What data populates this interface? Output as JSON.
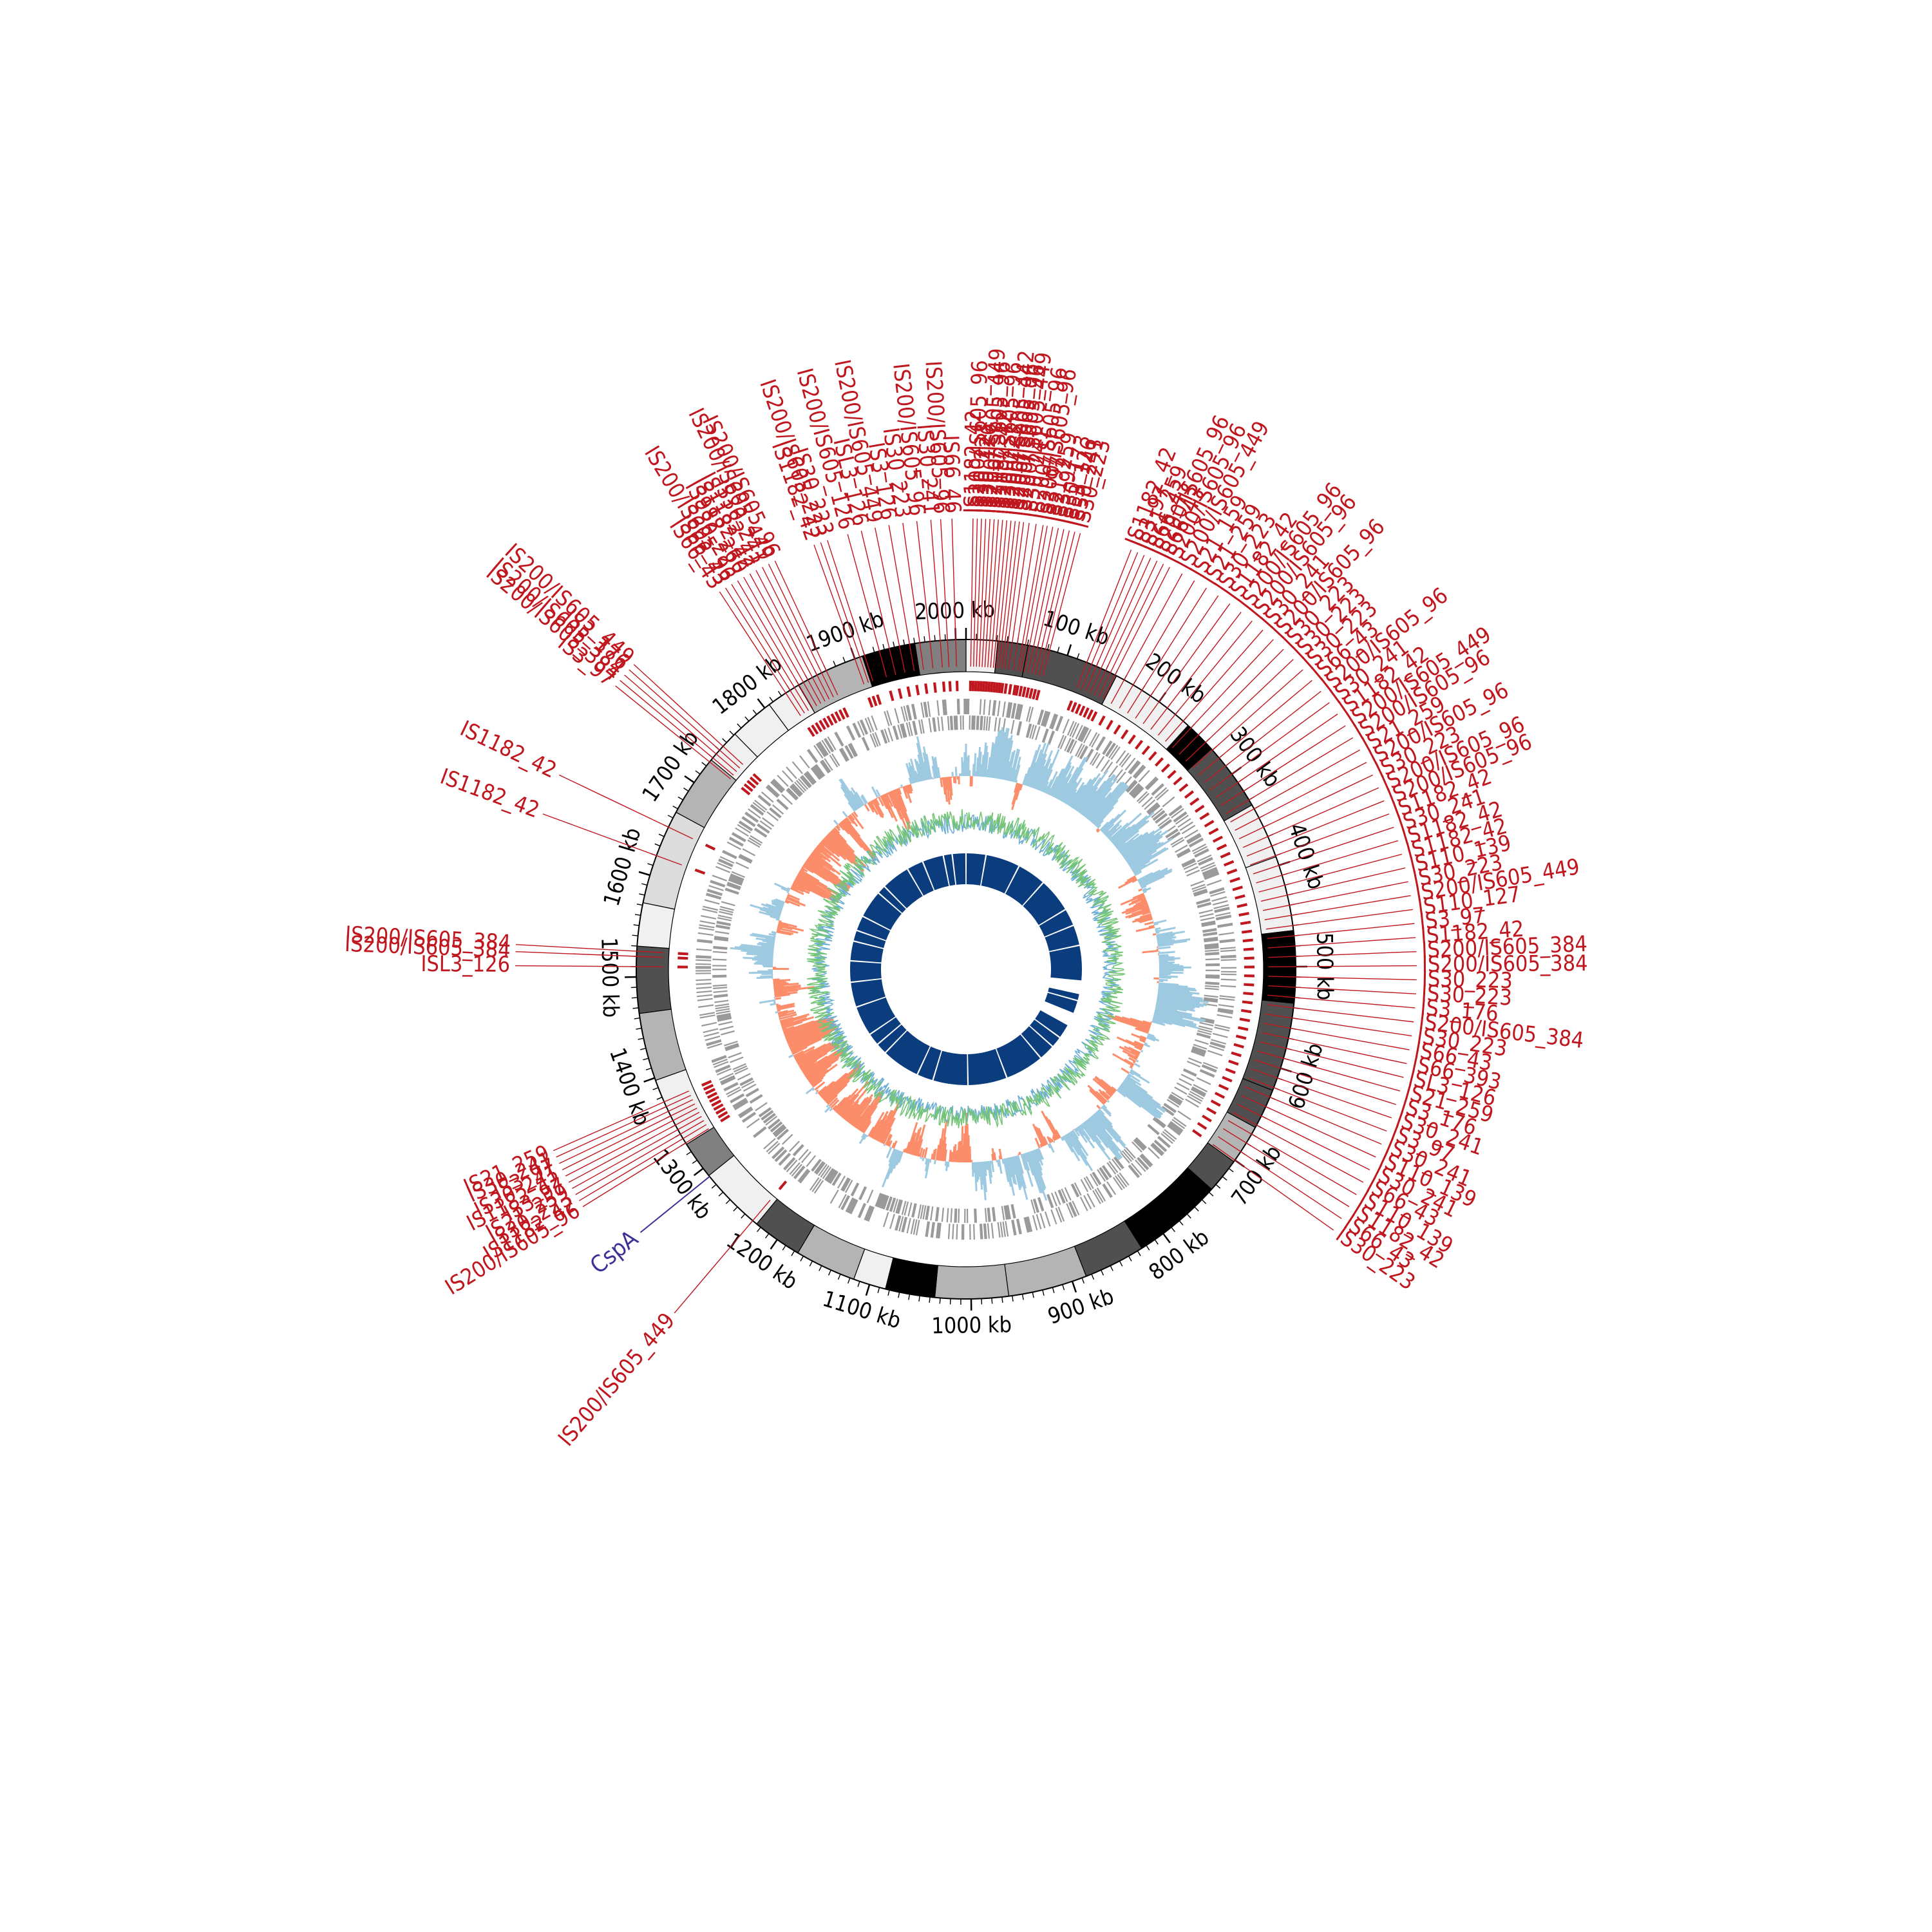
{
  "genome": {
    "length_kb": 2010,
    "origin_label": "2000 kb"
  },
  "colors": {
    "is_element": "#c0171f",
    "gene_marker": "#3c3296",
    "gc_skew_positive": "#9ecae1",
    "gc_skew_negative": "#fc8d6a",
    "gc_content_a": "#74c476",
    "gc_content_b": "#6baed6",
    "coverage_block": "#0b3d7e",
    "gene_track": "#999999",
    "region_shades": [
      "#000000",
      "#505050",
      "#808080",
      "#b4b4b4",
      "#dcdcdc",
      "#f0f0f0"
    ]
  },
  "scale_labels": [
    {
      "kb": 100,
      "text": "100 kb"
    },
    {
      "kb": 200,
      "text": "200 kb"
    },
    {
      "kb": 300,
      "text": "300 kb"
    },
    {
      "kb": 400,
      "text": "400 kb"
    },
    {
      "kb": 500,
      "text": "500 kb"
    },
    {
      "kb": 600,
      "text": "600 kb"
    },
    {
      "kb": 700,
      "text": "700 kb"
    },
    {
      "kb": 800,
      "text": "800 kb"
    },
    {
      "kb": 900,
      "text": "900 kb"
    },
    {
      "kb": 1000,
      "text": "1000 kb"
    },
    {
      "kb": 1100,
      "text": "1100 kb"
    },
    {
      "kb": 1200,
      "text": "1200 kb"
    },
    {
      "kb": 1300,
      "text": "1300 kb"
    },
    {
      "kb": 1400,
      "text": "1400 kb"
    },
    {
      "kb": 1500,
      "text": "1500 kb"
    },
    {
      "kb": 1600,
      "text": "1600 kb"
    },
    {
      "kb": 1700,
      "text": "1700 kb"
    },
    {
      "kb": 1800,
      "text": "1800 kb"
    },
    {
      "kb": 1900,
      "text": "1900 kb"
    },
    {
      "kb": 2000,
      "text": "2000 kb"
    }
  ],
  "gene_markers": [
    {
      "name": "CspA",
      "kb": 1290
    }
  ],
  "is_labels": [
    {
      "text": "IS30_241",
      "kb": 45
    },
    {
      "text": "IS200/IS605_96",
      "kb": 50
    },
    {
      "text": "IS200/IS605_96",
      "kb": 55
    },
    {
      "text": "IS3_97",
      "kb": 58
    },
    {
      "text": "IS21_259",
      "kb": 62
    },
    {
      "text": "IS3_97",
      "kb": 66
    },
    {
      "text": "IS30_173",
      "kb": 70
    },
    {
      "text": "ISL3_126",
      "kb": 74
    },
    {
      "text": "IS30_241",
      "kb": 78
    },
    {
      "text": "IS30_223",
      "kb": 82
    },
    {
      "text": "IS1182_42",
      "kb": 120
    },
    {
      "text": "IS3_97",
      "kb": 125
    },
    {
      "text": "IS21_259",
      "kb": 130
    },
    {
      "text": "IS66_43",
      "kb": 135
    },
    {
      "text": "IS200/IS605_96",
      "kb": 140
    },
    {
      "text": "IS66_43",
      "kb": 145
    },
    {
      "text": "IS200/IS605_96",
      "kb": 150
    },
    {
      "text": "IS200/IS605_449",
      "kb": 160
    },
    {
      "text": "IS21_159",
      "kb": 170
    },
    {
      "text": "IS21_259",
      "kb": 180
    },
    {
      "text": "IS30_223",
      "kb": 190
    },
    {
      "text": "IS1182_42",
      "kb": 200
    },
    {
      "text": "IS200/IS605_96",
      "kb": 210
    },
    {
      "text": "IS200/IS605_96",
      "kb": 220
    },
    {
      "text": "IS30_241",
      "kb": 230
    },
    {
      "text": "IS200/IS605_96",
      "kb": 240
    },
    {
      "text": "IS30_223",
      "kb": 250
    },
    {
      "text": "IS30_223",
      "kb": 260
    },
    {
      "text": "IS30_223",
      "kb": 270
    },
    {
      "text": "IS66_43",
      "kb": 280
    },
    {
      "text": "IS200/IS605_96",
      "kb": 290
    },
    {
      "text": "IS30_241",
      "kb": 300
    },
    {
      "text": "IS1182_42",
      "kb": 310
    },
    {
      "text": "IS200/IS605_449",
      "kb": 320
    },
    {
      "text": "IS200/IS605_96",
      "kb": 330
    },
    {
      "text": "IS21_259",
      "kb": 340
    },
    {
      "text": "IS200/IS605_96",
      "kb": 350
    },
    {
      "text": "IS30_223",
      "kb": 360
    },
    {
      "text": "IS200/IS605_96",
      "kb": 370
    },
    {
      "text": "IS200/IS605_96",
      "kb": 380
    },
    {
      "text": "IS1182_42",
      "kb": 390
    },
    {
      "text": "IS30_241",
      "kb": 400
    },
    {
      "text": "IS1182_42",
      "kb": 410
    },
    {
      "text": "IS1182_42",
      "kb": 420
    },
    {
      "text": "IS110_139",
      "kb": 430
    },
    {
      "text": "IS30_223",
      "kb": 440
    },
    {
      "text": "IS200/IS605_449",
      "kb": 450
    },
    {
      "text": "IS110_127",
      "kb": 460
    },
    {
      "text": "IS3_97",
      "kb": 470
    },
    {
      "text": "IS1182_42",
      "kb": 480
    },
    {
      "text": "IS200/IS605_384",
      "kb": 490
    },
    {
      "text": "IS200/IS605_384",
      "kb": 500
    },
    {
      "text": "IS30_223",
      "kb": 510
    },
    {
      "text": "IS30_223",
      "kb": 520
    },
    {
      "text": "IS3_176",
      "kb": 530
    },
    {
      "text": "IS200/IS605_384",
      "kb": 540
    },
    {
      "text": "IS30_223",
      "kb": 550
    },
    {
      "text": "IS66_43",
      "kb": 560
    },
    {
      "text": "IS66_393",
      "kb": 570
    },
    {
      "text": "ISL3_126",
      "kb": 580
    },
    {
      "text": "IS21_259",
      "kb": 590
    },
    {
      "text": "IS3_176",
      "kb": 600
    },
    {
      "text": "IS30_241",
      "kb": 610
    },
    {
      "text": "IS3_97",
      "kb": 620
    },
    {
      "text": "IS30_241",
      "kb": 630
    },
    {
      "text": "IS110_139",
      "kb": 640
    },
    {
      "text": "IS30_241",
      "kb": 650
    },
    {
      "text": "IS66_43",
      "kb": 660
    },
    {
      "text": "IS110_139",
      "kb": 670
    },
    {
      "text": "IS1182_42",
      "kb": 680
    },
    {
      "text": "IS66_43",
      "kb": 690
    },
    {
      "text": "IS30_223",
      "kb": 700
    },
    {
      "text": "IS200/IS605_449",
      "kb": 1230
    },
    {
      "text": "IS200/IS605_96",
      "kb": 1330
    },
    {
      "text": "IS1182_42",
      "kb": 1335
    },
    {
      "text": "IS30_223",
      "kb": 1340
    },
    {
      "text": "IS21_259",
      "kb": 1345
    },
    {
      "text": "IS3_97",
      "kb": 1350
    },
    {
      "text": "IS1182_42",
      "kb": 1355
    },
    {
      "text": "IS30_241",
      "kb": 1360
    },
    {
      "text": "IS3_97",
      "kb": 1365
    },
    {
      "text": "IS30_241",
      "kb": 1370
    },
    {
      "text": "IS21_259",
      "kb": 1375
    },
    {
      "text": "ISL3_126",
      "kb": 1510
    },
    {
      "text": "IS200/IS605_384",
      "kb": 1520
    },
    {
      "text": "IS200/IS605_384",
      "kb": 1525
    },
    {
      "text": "IS1182_42",
      "kb": 1620
    },
    {
      "text": "IS1182_42",
      "kb": 1650
    },
    {
      "text": "IS3_97",
      "kb": 1725
    },
    {
      "text": "IS200/IS605_384",
      "kb": 1730
    },
    {
      "text": "IS200/IS605_384",
      "kb": 1735
    },
    {
      "text": "IS3_176",
      "kb": 1740
    },
    {
      "text": "IS200/IS605_449",
      "kb": 1745
    },
    {
      "text": "IS66_43",
      "kb": 1825
    },
    {
      "text": "IS66_43",
      "kb": 1830
    },
    {
      "text": "IS200/IS605_96",
      "kb": 1835
    },
    {
      "text": "IS30_223",
      "kb": 1840
    },
    {
      "text": "IS982_260",
      "kb": 1845
    },
    {
      "text": "IS1182_42",
      "kb": 1850
    },
    {
      "text": "IS1182_42",
      "kb": 1855
    },
    {
      "text": "IS30_241",
      "kb": 1860
    },
    {
      "text": "IS200/IS605_449",
      "kb": 1865
    },
    {
      "text": "IS200/IS605_96",
      "kb": 1870
    },
    {
      "text": "IS1182_42",
      "kb": 1900
    },
    {
      "text": "IS200/IS605_223",
      "kb": 1905
    },
    {
      "text": "IS30_223",
      "kb": 1910
    },
    {
      "text": "IS200/IS605_126",
      "kb": 1925
    },
    {
      "text": "ISL3_126",
      "kb": 1935
    },
    {
      "text": "IS200/IS605_449",
      "kb": 1945
    },
    {
      "text": "IS3_126",
      "kb": 1955
    },
    {
      "text": "IS30_223",
      "kb": 1965
    },
    {
      "text": "IS200/IS605_96",
      "kb": 1975
    },
    {
      "text": "IS30_241",
      "kb": 1985
    },
    {
      "text": "IS200/IS605_96",
      "kb": 1992
    },
    {
      "text": "IS66_46",
      "kb": 2000
    },
    {
      "text": "IS1182_42",
      "kb": 5
    },
    {
      "text": "IS200/IS605_96",
      "kb": 8
    },
    {
      "text": "IS30_223",
      "kb": 11
    },
    {
      "text": "IS30_126",
      "kb": 14
    },
    {
      "text": "IS200/IS605_449",
      "kb": 17
    },
    {
      "text": "IS200/IS605_96",
      "kb": 20
    },
    {
      "text": "IS1182_42",
      "kb": 23
    },
    {
      "text": "IS200/IS605_96",
      "kb": 26
    },
    {
      "text": "IS30_223",
      "kb": 29
    },
    {
      "text": "IS200/IS605_442",
      "kb": 32
    },
    {
      "text": "IS200/IS605_96",
      "kb": 35
    },
    {
      "text": "IS200/IS605_96",
      "kb": 38
    },
    {
      "text": "IS200/IS605_449",
      "kb": 41
    }
  ]
}
